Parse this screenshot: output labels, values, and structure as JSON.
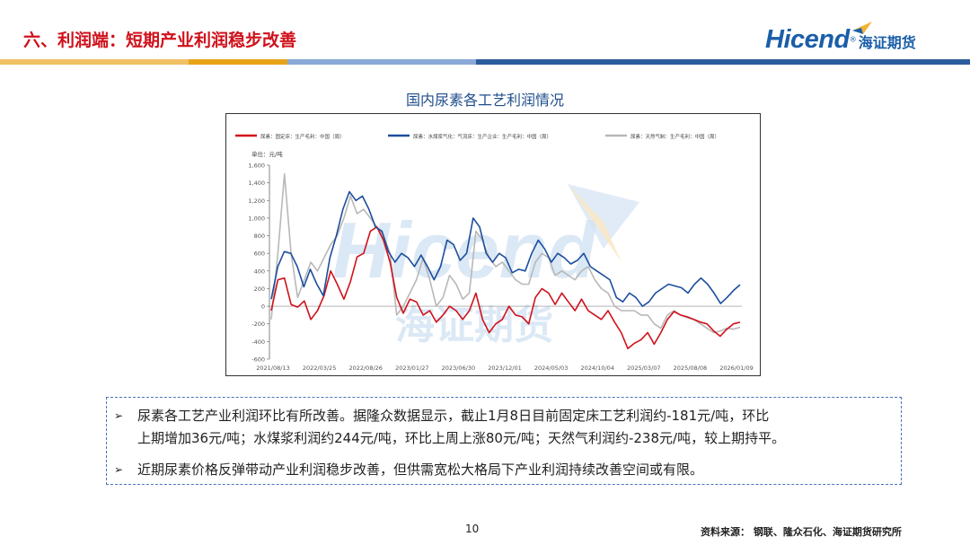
{
  "header": {
    "title": "六、利润端：短期产业利润稳步改善",
    "logo_text": "Hicend",
    "logo_cn": "海证期货"
  },
  "colors": {
    "title_red": "#d0111b",
    "brand_blue": "#1a5ea8",
    "band_gold": "#e8a317",
    "band_blue": "#2c5d9c"
  },
  "chart_data": {
    "type": "line",
    "title": "国内尿素各工艺利润情况",
    "unit_label": "单位：元/吨",
    "ylim": [
      -600,
      1600
    ],
    "yticks": [
      "1,600",
      "1,400",
      "1,200",
      "1,000",
      "800",
      "600",
      "400",
      "200",
      "0",
      "-200",
      "-400",
      "-600"
    ],
    "xticks": [
      "2021/08/13",
      "2022/03/25",
      "2022/08/26",
      "2023/01/27",
      "2023/06/30",
      "2023/12/01",
      "2024/05/03",
      "2024/10/04",
      "2025/03/07",
      "2025/08/08",
      "2026/01/09"
    ],
    "legend": "top",
    "series": [
      {
        "name": "尿素：固定床：生产毛利：中国（周）",
        "color": "#d0111b",
        "values": [
          -50,
          300,
          320,
          20,
          -10,
          60,
          -150,
          -50,
          120,
          400,
          250,
          80,
          280,
          560,
          600,
          850,
          900,
          750,
          500,
          100,
          -80,
          80,
          50,
          -100,
          -50,
          -180,
          -100,
          0,
          -50,
          -150,
          -50,
          150,
          -150,
          -300,
          -200,
          -150,
          0,
          -100,
          -120,
          -200,
          100,
          200,
          150,
          20,
          150,
          50,
          -50,
          80,
          -50,
          -100,
          -150,
          -50,
          -180,
          -300,
          -480,
          -420,
          -380,
          -300,
          -430,
          -300,
          -150,
          -60,
          -100,
          -120,
          -150,
          -180,
          -200,
          -280,
          -340,
          -260,
          -200,
          -181
        ]
      },
      {
        "name": "尿素：水煤浆气化：气流床：生产企业：生产毛利：中国（周）",
        "color": "#1d4e9c",
        "values": [
          80,
          450,
          620,
          600,
          450,
          220,
          420,
          250,
          120,
          550,
          800,
          1100,
          1300,
          1200,
          1250,
          1100,
          900,
          850,
          620,
          500,
          600,
          550,
          450,
          580,
          450,
          300,
          450,
          750,
          700,
          520,
          600,
          1000,
          900,
          600,
          500,
          600,
          550,
          380,
          420,
          400,
          600,
          750,
          650,
          500,
          600,
          550,
          480,
          520,
          600,
          450,
          400,
          350,
          300,
          100,
          50,
          150,
          100,
          0,
          50,
          150,
          200,
          250,
          230,
          210,
          150,
          250,
          320,
          250,
          150,
          30,
          100,
          180,
          244
        ]
      },
      {
        "name": "尿素：天然气制：生产毛利：中国（周）",
        "color": "#b8b8b8",
        "values": [
          -150,
          600,
          1500,
          600,
          100,
          300,
          500,
          400,
          550,
          700,
          800,
          1000,
          1250,
          1050,
          1100,
          1000,
          900,
          800,
          600,
          -100,
          0,
          150,
          300,
          550,
          300,
          0,
          100,
          350,
          250,
          80,
          150,
          850,
          750,
          550,
          450,
          500,
          400,
          300,
          250,
          250,
          500,
          600,
          550,
          350,
          400,
          350,
          300,
          400,
          450,
          300,
          200,
          150,
          0,
          -50,
          -50,
          -50,
          -100,
          -100,
          -200,
          -250,
          -100,
          -50,
          -100,
          -130,
          -150,
          -200,
          -250,
          -300,
          -280,
          -250,
          -260,
          -238
        ]
      }
    ],
    "watermark_text": "Hicend",
    "watermark_cn": "海证期货"
  },
  "notes": [
    {
      "line1": "尿素各工艺产业利润环比有所改善。据隆众数据显示，截止1月8日目前固定床工艺利润约-181元/吨，环比",
      "line2": "上期增加36元/吨；水煤浆利润约244元/吨，环比上周上涨80元/吨；天然气利润约-238元/吨，较上期持平。"
    },
    {
      "line1": "近期尿素价格反弹带动产业利润稳步改善，但供需宽松大格局下产业利润持续改善空间或有限。"
    }
  ],
  "bullet_symbol": "➢",
  "footer": {
    "page_number": "10",
    "source": "资料来源：  钢联、隆众石化、海证期货研究所"
  }
}
